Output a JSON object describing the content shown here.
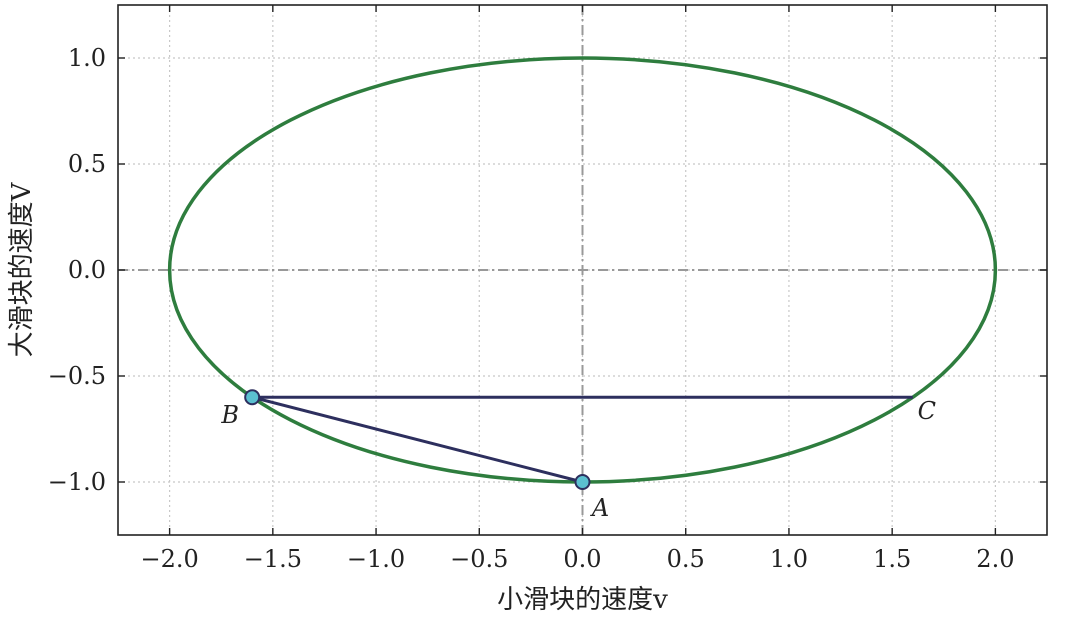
{
  "chart_data": {
    "type": "line",
    "xlabel": "小滑块的速度v",
    "ylabel": "大滑块的速度V",
    "xlim": [
      -2.25,
      2.25
    ],
    "ylim": [
      -1.25,
      1.25
    ],
    "xticks": [
      -2.0,
      -1.5,
      -1.0,
      -0.5,
      0.0,
      0.5,
      1.0,
      1.5,
      2.0
    ],
    "xtick_labels": [
      "−2.0",
      "−1.5",
      "−1.0",
      "−0.5",
      "0.0",
      "0.5",
      "1.0",
      "1.5",
      "2.0"
    ],
    "yticks": [
      -1.0,
      -0.5,
      0.0,
      0.5,
      1.0
    ],
    "ytick_labels": [
      "−1.0",
      "−0.5",
      "0.0",
      "0.5",
      "1.0"
    ],
    "grid": true,
    "ellipse": {
      "center": [
        0,
        0
      ],
      "semi_axis_x": 2.0,
      "semi_axis_y": 1.0,
      "color": "#2e7d3e"
    },
    "segments": [
      {
        "from": [
          0.0,
          -1.0
        ],
        "to": [
          -1.6,
          -0.6
        ],
        "color": "#2d2f5e"
      },
      {
        "from": [
          -1.6,
          -0.6
        ],
        "to": [
          1.6,
          -0.6
        ],
        "color": "#2d2f5e"
      }
    ],
    "points": [
      {
        "label": "A",
        "x": 0.0,
        "y": -1.0,
        "marker": true
      },
      {
        "label": "B",
        "x": -1.6,
        "y": -0.6,
        "marker": true
      },
      {
        "label": "C",
        "x": 1.6,
        "y": -0.6,
        "marker": false
      }
    ],
    "marker_color": "#5bc0d0",
    "zero_lines_color": "#999999"
  }
}
